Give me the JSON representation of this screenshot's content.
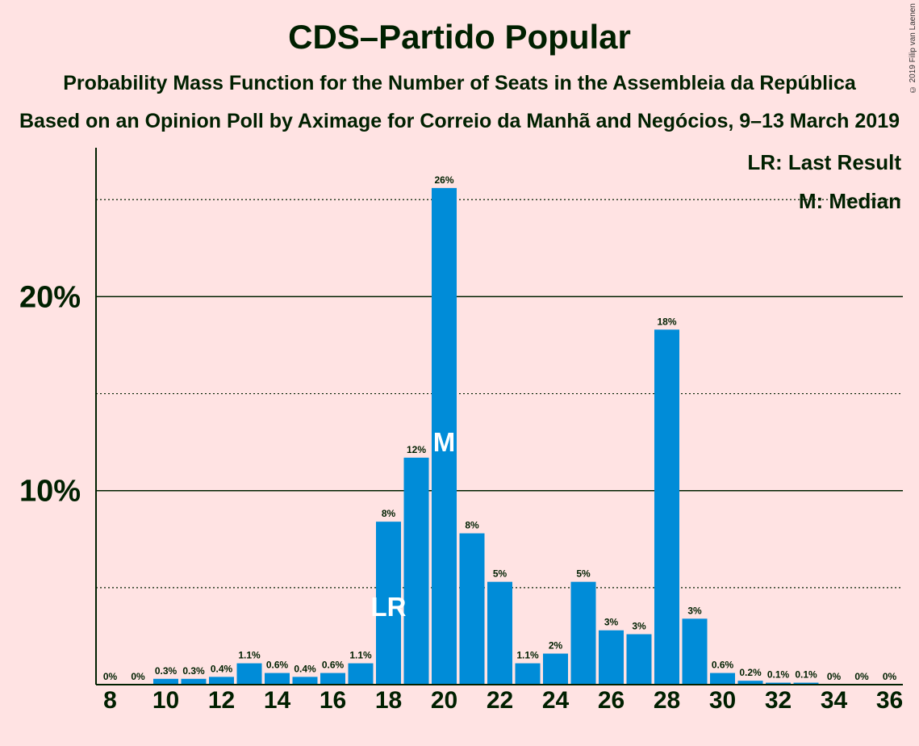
{
  "chart_data": {
    "type": "bar",
    "title": "CDS–Partido Popular",
    "subtitle": "Probability Mass Function for the Number of Seats in the Assembleia da República",
    "subtitle2": "Based on an Opinion Poll by Aximage for Correio da Manhã and Negócios, 9–13 March 2019",
    "copyright": "© 2019 Filip van Laenen",
    "legend": {
      "lr": "LR: Last Result",
      "median": "M: Median",
      "placement": "top-right"
    },
    "x": [
      8,
      9,
      10,
      11,
      12,
      13,
      14,
      15,
      16,
      17,
      18,
      19,
      20,
      21,
      22,
      23,
      24,
      25,
      26,
      27,
      28,
      29,
      30,
      31,
      32,
      33,
      34,
      35,
      36
    ],
    "values": [
      0,
      0,
      0.3,
      0.3,
      0.4,
      1.1,
      0.6,
      0.4,
      0.6,
      1.1,
      8.4,
      11.7,
      25.6,
      7.8,
      5.3,
      1.1,
      1.6,
      5.3,
      2.8,
      2.6,
      18.3,
      3.4,
      0.6,
      0.2,
      0.1,
      0.1,
      0,
      0,
      0
    ],
    "labels": [
      "0%",
      "0%",
      "0.3%",
      "0.3%",
      "0.4%",
      "1.1%",
      "0.6%",
      "0.4%",
      "0.6%",
      "1.1%",
      "8%",
      "12%",
      "26%",
      "8%",
      "5%",
      "1.1%",
      "2%",
      "5%",
      "3%",
      "3%",
      "18%",
      "3%",
      "0.6%",
      "0.2%",
      "0.1%",
      "0.1%",
      "0%",
      "0%",
      "0%"
    ],
    "x_ticks": [
      8,
      10,
      12,
      14,
      16,
      18,
      20,
      22,
      24,
      26,
      28,
      30,
      32,
      34,
      36
    ],
    "y_ticks": [
      {
        "value": 10,
        "label": "10%"
      },
      {
        "value": 20,
        "label": "20%"
      }
    ],
    "minor_gridlines": [
      5,
      15,
      25
    ],
    "ylim": [
      0,
      27.8
    ],
    "last_result": {
      "seat": 18,
      "marker": "LR"
    },
    "median": {
      "seat": 20,
      "marker": "M"
    },
    "bar_color": "#008CD8",
    "text_color": "#002000"
  }
}
